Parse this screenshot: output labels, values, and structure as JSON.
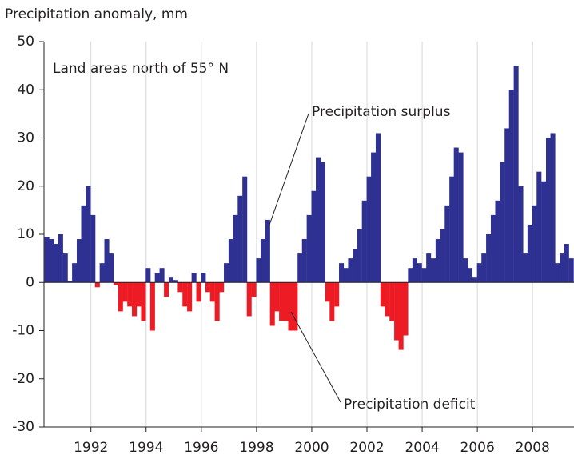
{
  "chart_data": {
    "type": "bar",
    "title": "Precipitation anomaly, mm",
    "annotations": [
      "Land areas north of 55° N",
      "Precipitation surplus",
      "Precipitation deficit"
    ],
    "x": [
      1990.4,
      1990.57,
      1990.73,
      1990.9,
      1991.07,
      1991.23,
      1991.4,
      1991.57,
      1991.73,
      1991.9,
      1992.07,
      1992.23,
      1992.4,
      1992.57,
      1992.73,
      1992.9,
      1993.07,
      1993.23,
      1993.4,
      1993.57,
      1993.73,
      1993.9,
      1994.07,
      1994.23,
      1994.4,
      1994.57,
      1994.73,
      1994.9,
      1995.07,
      1995.23,
      1995.4,
      1995.57,
      1995.73,
      1995.9,
      1996.07,
      1996.23,
      1996.4,
      1996.57,
      1996.73,
      1996.9,
      1997.07,
      1997.23,
      1997.4,
      1997.57,
      1997.73,
      1997.9,
      1998.07,
      1998.23,
      1998.4,
      1998.57,
      1998.73,
      1998.9,
      1999.07,
      1999.23,
      1999.4,
      1999.57,
      1999.73,
      1999.9,
      2000.07,
      2000.23,
      2000.4,
      2000.57,
      2000.73,
      2000.9,
      2001.07,
      2001.23,
      2001.4,
      2001.57,
      2001.73,
      2001.9,
      2002.07,
      2002.23,
      2002.4,
      2002.57,
      2002.73,
      2002.9,
      2003.07,
      2003.23,
      2003.4,
      2003.57,
      2003.73,
      2003.9,
      2004.07,
      2004.23,
      2004.4,
      2004.57,
      2004.73,
      2004.9,
      2005.07,
      2005.23,
      2005.4,
      2005.57,
      2005.73,
      2005.9,
      2006.07,
      2006.23,
      2006.4,
      2006.57,
      2006.73,
      2006.9,
      2007.07,
      2007.23,
      2007.4,
      2007.57,
      2007.73,
      2007.9,
      2008.07,
      2008.23,
      2008.4,
      2008.57,
      2008.73,
      2008.9,
      2009.07,
      2009.23,
      2009.4
    ],
    "values": [
      9.5,
      9,
      8,
      10,
      6,
      0.3,
      4,
      9,
      16,
      20,
      14,
      -1,
      4,
      9,
      6,
      -0.5,
      -6,
      -4,
      -5,
      -7,
      -5,
      -8,
      3,
      -10,
      2,
      3,
      -3,
      1,
      0.5,
      -2,
      -5,
      -6,
      2,
      -4,
      2,
      -2,
      -4,
      -8,
      -2,
      4,
      9,
      14,
      18,
      22,
      -7,
      -3,
      5,
      9,
      13,
      -9,
      -6,
      -8,
      -8,
      -10,
      -10,
      6,
      9,
      14,
      19,
      26,
      25,
      -4,
      -8,
      -5,
      4,
      3,
      5,
      7,
      11,
      17,
      22,
      27,
      31,
      -5,
      -7,
      -8,
      -12,
      -14,
      -11,
      3,
      5,
      4,
      3,
      6,
      5,
      9,
      11,
      16,
      22,
      28,
      27,
      5,
      3,
      1,
      4,
      6,
      10,
      14,
      17,
      25,
      32,
      40,
      45,
      20,
      6,
      12,
      16,
      23,
      21,
      30,
      31,
      4,
      6,
      8,
      5
    ],
    "positive_color": "#2e3192",
    "negative_color": "#ed1c24",
    "xlim": [
      1990.3,
      2009.5
    ],
    "xticks": [
      1992,
      1994,
      1996,
      1998,
      2000,
      2002,
      2004,
      2006,
      2008
    ],
    "ylim": [
      -30,
      50
    ],
    "yticks": [
      -30,
      -20,
      -10,
      0,
      10,
      20,
      30,
      40,
      50
    ],
    "grid": true
  }
}
